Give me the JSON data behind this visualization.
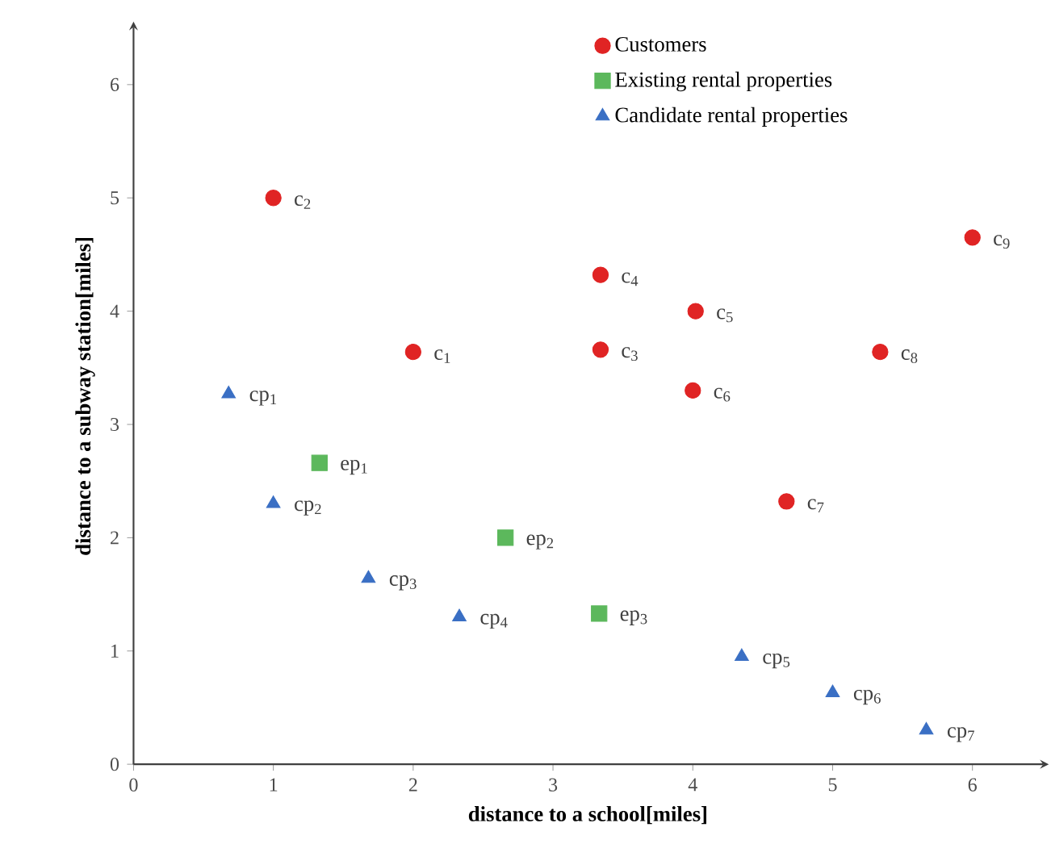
{
  "chart_data": {
    "type": "scatter",
    "xlabel": "distance to a school[miles]",
    "ylabel": "distance to a subway station[miles]",
    "xlim": [
      0,
      6.5
    ],
    "ylim": [
      0,
      6.5
    ],
    "xticks": [
      0,
      1,
      2,
      3,
      4,
      5,
      6
    ],
    "yticks": [
      0,
      1,
      2,
      3,
      4,
      5,
      6
    ],
    "grid": false,
    "legend": "top",
    "series": [
      {
        "name": "Customers",
        "color": "#e02424",
        "marker": "circle",
        "x": [
          2.0,
          1.0,
          3.34,
          3.34,
          4.02,
          4.0,
          4.67,
          5.34,
          6.0
        ],
        "values": [
          3.64,
          5.0,
          3.66,
          4.32,
          4.0,
          3.3,
          2.32,
          3.64,
          4.65
        ]
      },
      {
        "name": "Existing rental properties",
        "color": "#5cb85c",
        "marker": "square",
        "x": [
          1.33,
          2.66,
          3.33
        ],
        "values": [
          2.66,
          2.0,
          1.33
        ]
      },
      {
        "name": "Candidate rental properties",
        "color": "#3a6fc4",
        "marker": "triangle",
        "x": [
          0.68,
          1.0,
          1.68,
          2.33,
          4.35,
          5.0,
          5.67
        ],
        "values": [
          3.27,
          2.3,
          1.64,
          1.3,
          0.95,
          0.63,
          0.3
        ]
      }
    ],
    "annotations": [
      {
        "text": "c$_{1}$",
        "x": 2.0,
        "y": 3.64
      },
      {
        "text": "c$_{2}$",
        "x": 1.0,
        "y": 5.0
      },
      {
        "text": "c$_{3}$",
        "x": 3.34,
        "y": 3.66
      },
      {
        "text": "c$_{4}$",
        "x": 3.34,
        "y": 4.32
      },
      {
        "text": "c$_{5}$",
        "x": 4.02,
        "y": 4.0
      },
      {
        "text": "c$_{6}$",
        "x": 4.0,
        "y": 3.3
      },
      {
        "text": "c$_{7}$",
        "x": 4.67,
        "y": 2.32
      },
      {
        "text": "c$_{8}$",
        "x": 5.34,
        "y": 3.64
      },
      {
        "text": "c$_{9}$",
        "x": 6.0,
        "y": 4.65
      },
      {
        "text": "ep$_{1}$",
        "x": 1.33,
        "y": 2.66
      },
      {
        "text": "ep$_{2}$",
        "x": 2.66,
        "y": 2.0
      },
      {
        "text": "ep$_{3}$",
        "x": 3.33,
        "y": 1.33
      },
      {
        "text": "cp$_{1}$",
        "x": 0.68,
        "y": 3.27
      },
      {
        "text": "cp$_{2}$",
        "x": 1.0,
        "y": 2.3
      },
      {
        "text": "cp$_{3}$",
        "x": 1.68,
        "y": 1.64
      },
      {
        "text": "cp$_{4}$",
        "x": 2.33,
        "y": 1.3
      },
      {
        "text": "cp$_{5}$",
        "x": 4.35,
        "y": 0.95
      },
      {
        "text": "cp$_{6}$",
        "x": 5.0,
        "y": 0.63
      },
      {
        "text": "cp$_{7}$",
        "x": 5.67,
        "y": 0.3
      }
    ]
  }
}
